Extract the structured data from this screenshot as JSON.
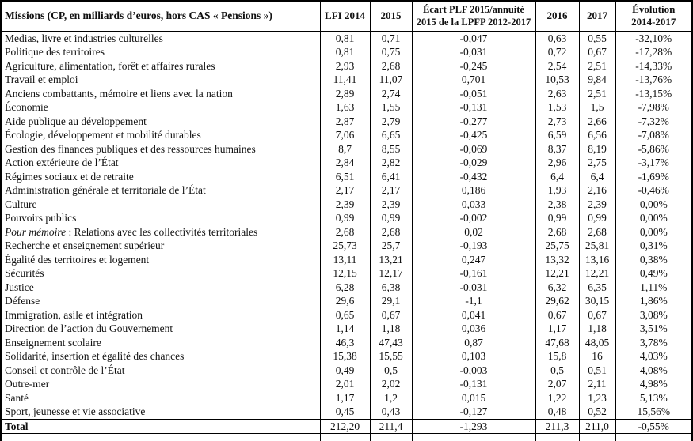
{
  "table": {
    "columns": [
      {
        "label": "Missions (CP, en milliards d’euros, hors CAS « Pensions »)"
      },
      {
        "label": "LFI 2014"
      },
      {
        "label": "2015"
      },
      {
        "lines": [
          "Écart PLF 2015/annuité",
          "2015 de la LPFP 2012-2017"
        ]
      },
      {
        "label": "2016"
      },
      {
        "label": "2017"
      },
      {
        "lines": [
          "Évolution",
          "2014-2017"
        ]
      }
    ],
    "rows": [
      {
        "mission": "Medias, livre et industries culturelles",
        "values": [
          "0,81",
          "0,71",
          "-0,047",
          "0,63",
          "0,55",
          "-32,10%"
        ]
      },
      {
        "mission": "Politique des territoires",
        "values": [
          "0,81",
          "0,75",
          "-0,031",
          "0,72",
          "0,67",
          "-17,28%"
        ]
      },
      {
        "mission": "Agriculture, alimentation, forêt et affaires rurales",
        "values": [
          "2,93",
          "2,68",
          "-0,245",
          "2,54",
          "2,51",
          "-14,33%"
        ]
      },
      {
        "mission": "Travail et emploi",
        "values": [
          "11,41",
          "11,07",
          "0,701",
          "10,53",
          "9,84",
          "-13,76%"
        ]
      },
      {
        "mission": "Anciens combattants, mémoire et liens avec la nation",
        "values": [
          "2,89",
          "2,74",
          "-0,051",
          "2,63",
          "2,51",
          "-13,15%"
        ]
      },
      {
        "mission": "Économie",
        "values": [
          "1,63",
          "1,55",
          "-0,131",
          "1,53",
          "1,5",
          "-7,98%"
        ]
      },
      {
        "mission": "Aide publique au développement",
        "values": [
          "2,87",
          "2,79",
          "-0,277",
          "2,73",
          "2,66",
          "-7,32%"
        ]
      },
      {
        "mission": "Écologie, développement et mobilité durables",
        "values": [
          "7,06",
          "6,65",
          "-0,425",
          "6,59",
          "6,56",
          "-7,08%"
        ]
      },
      {
        "mission": "Gestion des finances publiques et des ressources humaines",
        "values": [
          "8,7",
          "8,55",
          "-0,069",
          "8,37",
          "8,19",
          "-5,86%"
        ]
      },
      {
        "mission": "Action extérieure de l’État",
        "values": [
          "2,84",
          "2,82",
          "-0,029",
          "2,96",
          "2,75",
          "-3,17%"
        ]
      },
      {
        "mission": "Régimes sociaux et de retraite",
        "values": [
          "6,51",
          "6,41",
          "-0,432",
          "6,4",
          "6,4",
          "-1,69%"
        ]
      },
      {
        "mission": "Administration générale et territoriale de l’État",
        "values": [
          "2,17",
          "2,17",
          "0,186",
          "1,93",
          "2,16",
          "-0,46%"
        ]
      },
      {
        "mission": "Culture",
        "values": [
          "2,39",
          "2,39",
          "0,033",
          "2,38",
          "2,39",
          "0,00%"
        ]
      },
      {
        "mission": "Pouvoirs publics",
        "values": [
          "0,99",
          "0,99",
          "-0,002",
          "0,99",
          "0,99",
          "0,00%"
        ]
      },
      {
        "italic_prefix": "Pour mémoire",
        "mission": " : Relations avec les collectivités territoriales",
        "values": [
          "2,68",
          "2,68",
          "0,02",
          "2,68",
          "2,68",
          "0,00%"
        ]
      },
      {
        "mission": "Recherche et enseignement supérieur",
        "values": [
          "25,73",
          "25,7",
          "-0,193",
          "25,75",
          "25,81",
          "0,31%"
        ]
      },
      {
        "mission": "Égalité des territoires et logement",
        "values": [
          "13,11",
          "13,21",
          "0,247",
          "13,32",
          "13,16",
          "0,38%"
        ]
      },
      {
        "mission": "Sécurités",
        "values": [
          "12,15",
          "12,17",
          "-0,161",
          "12,21",
          "12,21",
          "0,49%"
        ]
      },
      {
        "mission": "Justice",
        "values": [
          "6,28",
          "6,38",
          "-0,031",
          "6,32",
          "6,35",
          "1,11%"
        ]
      },
      {
        "mission": "Défense",
        "values": [
          "29,6",
          "29,1",
          "-1,1",
          "29,62",
          "30,15",
          "1,86%"
        ]
      },
      {
        "mission": "Immigration, asile et intégration",
        "values": [
          "0,65",
          "0,67",
          "0,041",
          "0,67",
          "0,67",
          "3,08%"
        ]
      },
      {
        "mission": "Direction de l’action du Gouvernement",
        "values": [
          "1,14",
          "1,18",
          "0,036",
          "1,17",
          "1,18",
          "3,51%"
        ]
      },
      {
        "mission": "Enseignement scolaire",
        "values": [
          "46,3",
          "47,43",
          "0,87",
          "47,68",
          "48,05",
          "3,78%"
        ]
      },
      {
        "mission": "Solidarité, insertion et égalité des chances",
        "values": [
          "15,38",
          "15,55",
          "0,103",
          "15,8",
          "16",
          "4,03%"
        ]
      },
      {
        "mission": "Conseil et contrôle de l’État",
        "values": [
          "0,49",
          "0,5",
          "-0,003",
          "0,5",
          "0,51",
          "4,08%"
        ]
      },
      {
        "mission": "Outre-mer",
        "values": [
          "2,01",
          "2,02",
          "-0,131",
          "2,07",
          "2,11",
          "4,98%"
        ]
      },
      {
        "mission": "Santé",
        "values": [
          "1,17",
          "1,2",
          "0,015",
          "1,22",
          "1,23",
          "5,13%"
        ]
      },
      {
        "mission": "Sport, jeunesse et vie associative",
        "values": [
          "0,45",
          "0,43",
          "-0,127",
          "0,48",
          "0,52",
          "15,56%"
        ]
      }
    ],
    "total": {
      "label": "Total",
      "values": [
        "212,20",
        "211,4",
        "-1,293",
        "211,3",
        "211,0",
        "-0,55%"
      ]
    }
  }
}
